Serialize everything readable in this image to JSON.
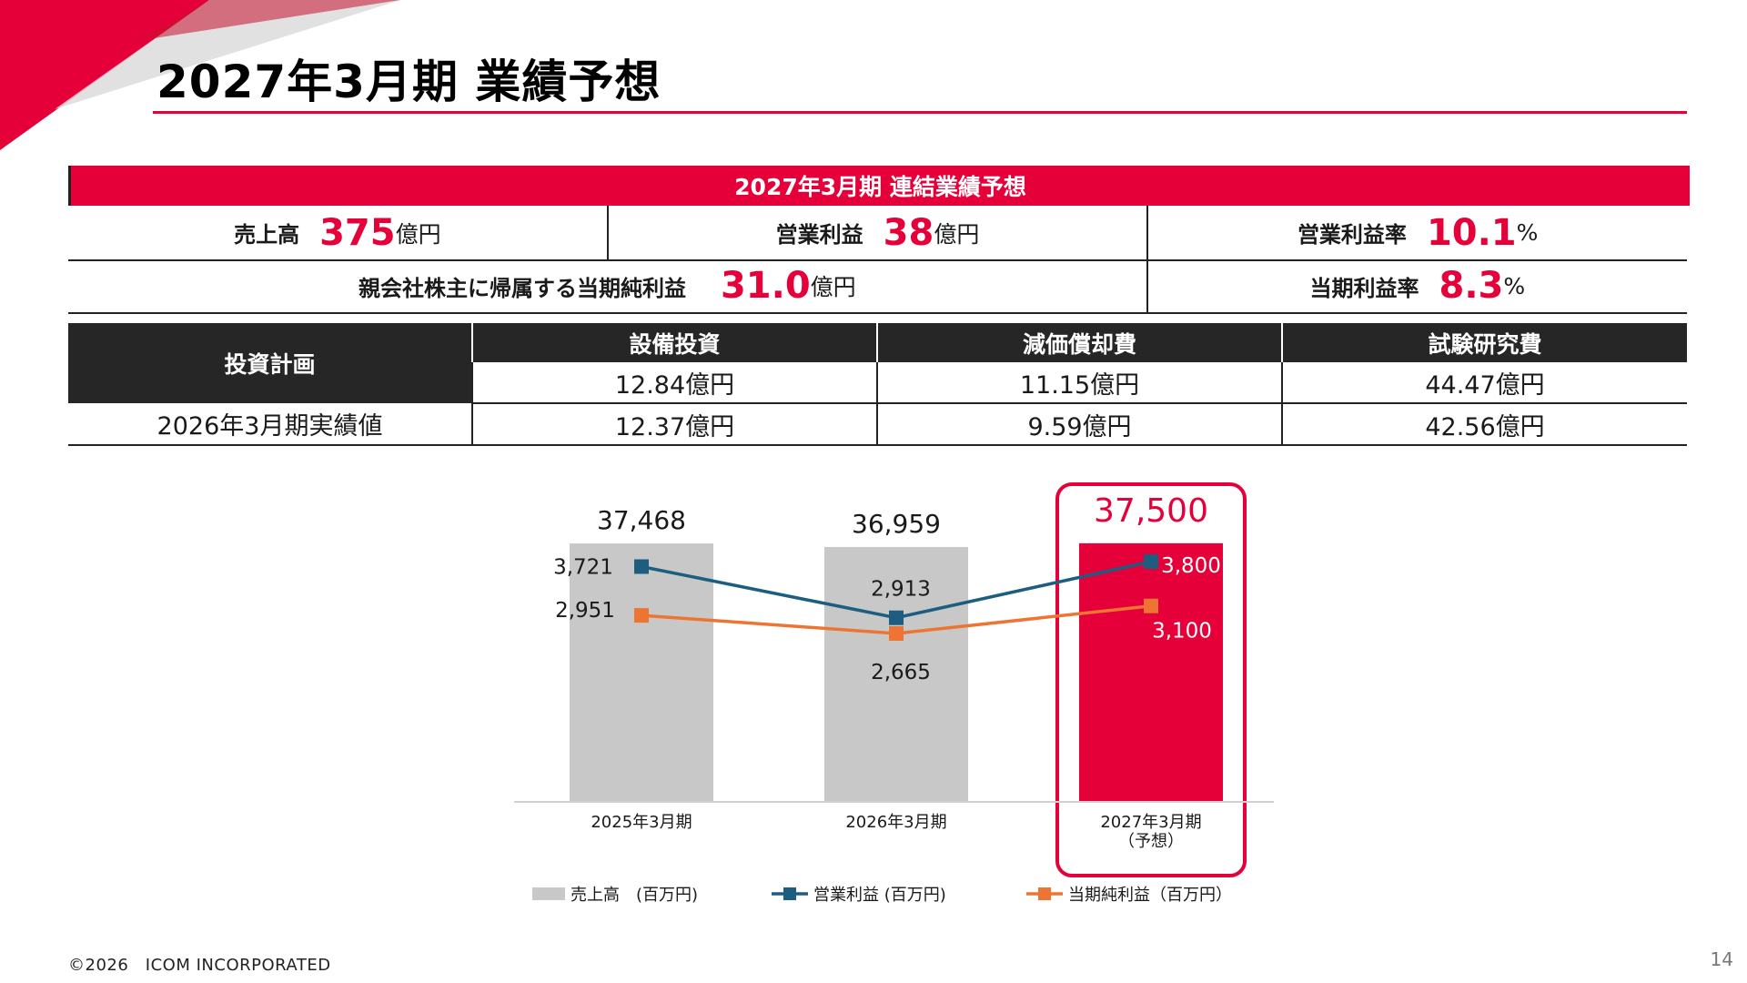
{
  "slide": {
    "title": "2027年3月期 業績予想",
    "copyright": "©2026　ICOM INCORPORATED",
    "page_number": "14",
    "accent_color": "#e60039"
  },
  "summary": {
    "header": "2027年3月期 連結業績予想",
    "row1": [
      {
        "label": "売上高",
        "value": "375",
        "unit": "億円"
      },
      {
        "label": "営業利益",
        "value": "38",
        "unit": "億円"
      },
      {
        "label": "営業利益率",
        "value": "10.1",
        "unit": "%"
      }
    ],
    "row2": [
      {
        "label": "親会社株主に帰属する当期純利益",
        "value": "31.0",
        "unit": "億円"
      },
      {
        "label": "当期利益率",
        "value": "8.3",
        "unit": "%"
      }
    ]
  },
  "investment": {
    "plan_label": "投資計画",
    "headers": [
      "設備投資",
      "減価償却費",
      "試験研究費"
    ],
    "plan_values": [
      "12.84億円",
      "11.15億円",
      "44.47億円"
    ],
    "actual_label": "2026年3月期実績値",
    "actual_values": [
      "12.37億円",
      "9.59億円",
      "42.56億円"
    ]
  },
  "chart_data": {
    "type": "bar",
    "categories": [
      "2025年3月期",
      "2026年3月期",
      "2027年3月期\n（予想）"
    ],
    "series": [
      {
        "name": "売上高　(百万円)",
        "kind": "bar",
        "values": [
          37468,
          36959,
          37500
        ],
        "colors": [
          "#c8c8c8",
          "#c8c8c8",
          "#e60039"
        ],
        "labels": [
          "37,468",
          "36,959",
          "37,500"
        ]
      },
      {
        "name": "営業利益 (百万円)",
        "kind": "line",
        "color": "#1d5e80",
        "values": [
          3721,
          2913,
          3800
        ],
        "labels": [
          "3,721",
          "2,913",
          "3,800"
        ]
      },
      {
        "name": "当期純利益（百万円）",
        "kind": "line",
        "color": "#ed7433",
        "values": [
          2951,
          2665,
          3100
        ],
        "labels": [
          "2,951",
          "2,665",
          "3,100"
        ]
      }
    ],
    "highlight_category": 2,
    "legend": "bottom"
  }
}
